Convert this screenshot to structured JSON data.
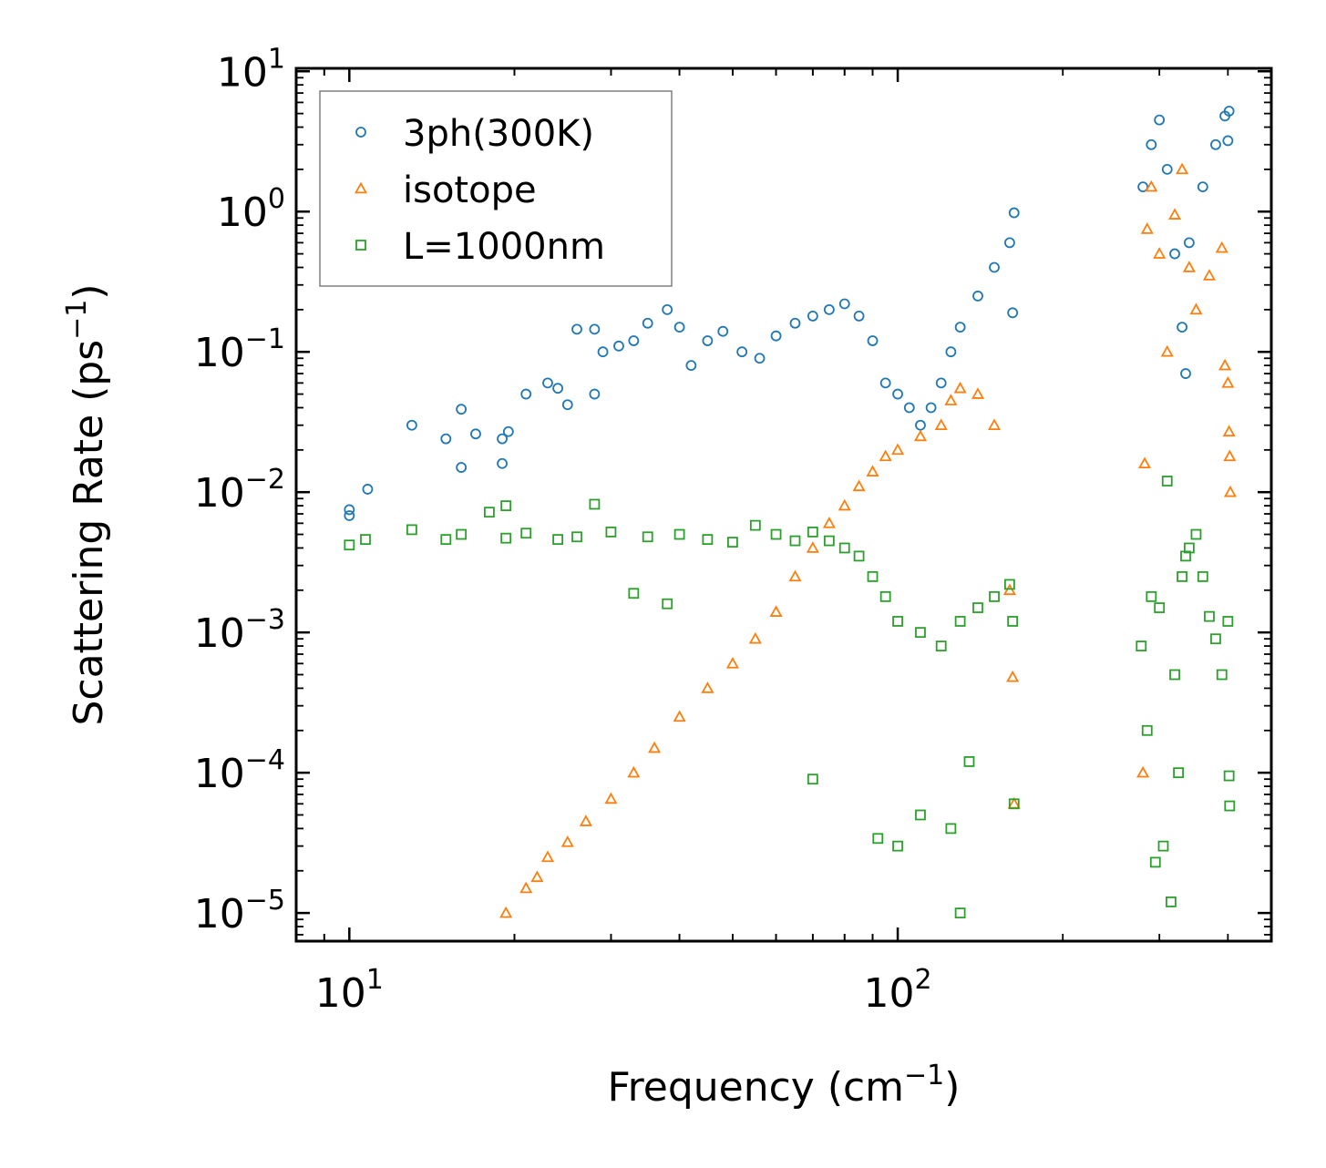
{
  "chart_data": {
    "type": "scatter",
    "x_scale": "log",
    "y_scale": "log",
    "xlabel": "Frequency (cm",
    "xlabel_sup": "−1",
    "xlabel_end": ")",
    "ylabel": "Scattering Rate (ps",
    "ylabel_sup": "−1",
    "ylabel_end": ")",
    "xlim": [
      8,
      480
    ],
    "ylim": [
      6.3e-06,
      10.5
    ],
    "x_ticks": [
      {
        "value": 10,
        "base": "10",
        "exp": "1"
      },
      {
        "value": 100,
        "base": "10",
        "exp": "2"
      }
    ],
    "y_ticks": [
      {
        "value": 10,
        "base": "10",
        "exp": "1"
      },
      {
        "value": 1,
        "base": "10",
        "exp": "0"
      },
      {
        "value": 0.1,
        "base": "10",
        "exp": "−1"
      },
      {
        "value": 0.01,
        "base": "10",
        "exp": "−2"
      },
      {
        "value": 0.001,
        "base": "10",
        "exp": "−3"
      },
      {
        "value": 0.0001,
        "base": "10",
        "exp": "−4"
      },
      {
        "value": 1e-05,
        "base": "10",
        "exp": "−5"
      }
    ],
    "legend_position": "top-left",
    "series": [
      {
        "name": "3ph(300K)",
        "marker": "circle",
        "color": "#1f77b4",
        "points": [
          [
            10,
            0.0075
          ],
          [
            10,
            0.0068
          ],
          [
            10.8,
            0.0105
          ],
          [
            13,
            0.03
          ],
          [
            15,
            0.024
          ],
          [
            16,
            0.039
          ],
          [
            16,
            0.015
          ],
          [
            17,
            0.026
          ],
          [
            19,
            0.024
          ],
          [
            19,
            0.016
          ],
          [
            19.5,
            0.027
          ],
          [
            21,
            0.05
          ],
          [
            23,
            0.06
          ],
          [
            24,
            0.055
          ],
          [
            25,
            0.042
          ],
          [
            26,
            0.145
          ],
          [
            28,
            0.145
          ],
          [
            28,
            0.05
          ],
          [
            29,
            0.1
          ],
          [
            31,
            0.11
          ],
          [
            33,
            0.12
          ],
          [
            35,
            0.16
          ],
          [
            38,
            0.2
          ],
          [
            40,
            0.15
          ],
          [
            42,
            0.08
          ],
          [
            45,
            0.12
          ],
          [
            48,
            0.14
          ],
          [
            52,
            0.1
          ],
          [
            56,
            0.09
          ],
          [
            60,
            0.13
          ],
          [
            65,
            0.16
          ],
          [
            70,
            0.18
          ],
          [
            75,
            0.2
          ],
          [
            80,
            0.22
          ],
          [
            85,
            0.18
          ],
          [
            90,
            0.12
          ],
          [
            95,
            0.06
          ],
          [
            100,
            0.05
          ],
          [
            105,
            0.04
          ],
          [
            110,
            0.03
          ],
          [
            115,
            0.04
          ],
          [
            120,
            0.06
          ],
          [
            125,
            0.1
          ],
          [
            130,
            0.15
          ],
          [
            140,
            0.25
          ],
          [
            150,
            0.4
          ],
          [
            160,
            0.6
          ],
          [
            163,
            0.98
          ],
          [
            162,
            0.19
          ],
          [
            280,
            1.5
          ],
          [
            290,
            3.0
          ],
          [
            300,
            4.5
          ],
          [
            310,
            2.0
          ],
          [
            320,
            0.5
          ],
          [
            330,
            0.15
          ],
          [
            335,
            0.07
          ],
          [
            340,
            0.6
          ],
          [
            360,
            1.5
          ],
          [
            380,
            3.0
          ],
          [
            395,
            4.8
          ],
          [
            400,
            3.2
          ],
          [
            402,
            5.2
          ]
        ]
      },
      {
        "name": "isotope",
        "marker": "triangle",
        "color": "#ff7f0e",
        "points": [
          [
            19.3,
            1e-05
          ],
          [
            21,
            1.5e-05
          ],
          [
            22,
            1.8e-05
          ],
          [
            23,
            2.5e-05
          ],
          [
            25,
            3.2e-05
          ],
          [
            27,
            4.5e-05
          ],
          [
            30,
            6.5e-05
          ],
          [
            33,
            0.0001
          ],
          [
            36,
            0.00015
          ],
          [
            40,
            0.00025
          ],
          [
            45,
            0.0004
          ],
          [
            50,
            0.0006
          ],
          [
            55,
            0.0009
          ],
          [
            60,
            0.0014
          ],
          [
            65,
            0.0025
          ],
          [
            70,
            0.004
          ],
          [
            75,
            0.006
          ],
          [
            80,
            0.008
          ],
          [
            85,
            0.011
          ],
          [
            90,
            0.014
          ],
          [
            95,
            0.018
          ],
          [
            100,
            0.02
          ],
          [
            110,
            0.025
          ],
          [
            120,
            0.03
          ],
          [
            125,
            0.045
          ],
          [
            130,
            0.055
          ],
          [
            140,
            0.05
          ],
          [
            150,
            0.03
          ],
          [
            160,
            0.002
          ],
          [
            162,
            0.00048
          ],
          [
            163,
            6e-05
          ],
          [
            280,
            0.0001
          ],
          [
            282,
            0.016
          ],
          [
            285,
            0.75
          ],
          [
            290,
            1.5
          ],
          [
            300,
            0.5
          ],
          [
            310,
            0.1
          ],
          [
            320,
            0.95
          ],
          [
            330,
            2.0
          ],
          [
            340,
            0.4
          ],
          [
            350,
            0.2
          ],
          [
            370,
            0.35
          ],
          [
            390,
            0.55
          ],
          [
            395,
            0.08
          ],
          [
            400,
            0.06
          ],
          [
            402,
            0.027
          ],
          [
            403,
            0.018
          ],
          [
            404,
            0.01
          ]
        ]
      },
      {
        "name": "L=1000nm",
        "marker": "square",
        "color": "#2ca02c",
        "points": [
          [
            10,
            0.0042
          ],
          [
            10.7,
            0.0046
          ],
          [
            13,
            0.0054
          ],
          [
            15,
            0.0046
          ],
          [
            16,
            0.005
          ],
          [
            18,
            0.0072
          ],
          [
            19.3,
            0.008
          ],
          [
            19.3,
            0.0047
          ],
          [
            21,
            0.0051
          ],
          [
            24,
            0.0046
          ],
          [
            26,
            0.0048
          ],
          [
            28,
            0.0082
          ],
          [
            30,
            0.0052
          ],
          [
            33,
            0.0019
          ],
          [
            35,
            0.0048
          ],
          [
            38,
            0.0016
          ],
          [
            40,
            0.005
          ],
          [
            45,
            0.0046
          ],
          [
            50,
            0.0044
          ],
          [
            55,
            0.0058
          ],
          [
            60,
            0.005
          ],
          [
            65,
            0.0045
          ],
          [
            70,
            0.0052
          ],
          [
            75,
            0.0045
          ],
          [
            80,
            0.004
          ],
          [
            85,
            0.0035
          ],
          [
            90,
            0.0025
          ],
          [
            95,
            0.0018
          ],
          [
            100,
            0.0012
          ],
          [
            110,
            0.001
          ],
          [
            120,
            0.0008
          ],
          [
            130,
            0.0012
          ],
          [
            140,
            0.0015
          ],
          [
            150,
            0.0018
          ],
          [
            160,
            0.0022
          ],
          [
            162,
            0.0012
          ],
          [
            70,
            9e-05
          ],
          [
            92,
            3.4e-05
          ],
          [
            100,
            3e-05
          ],
          [
            110,
            5e-05
          ],
          [
            125,
            4e-05
          ],
          [
            130,
            1e-05
          ],
          [
            135,
            0.00012
          ],
          [
            163,
            6e-05
          ],
          [
            278,
            0.0008
          ],
          [
            285,
            0.0002
          ],
          [
            290,
            0.0018
          ],
          [
            295,
            2.3e-05
          ],
          [
            300,
            0.0015
          ],
          [
            305,
            3e-05
          ],
          [
            310,
            0.012
          ],
          [
            315,
            1.2e-05
          ],
          [
            320,
            0.0005
          ],
          [
            325,
            0.0001
          ],
          [
            330,
            0.0025
          ],
          [
            335,
            0.0035
          ],
          [
            340,
            0.004
          ],
          [
            350,
            0.005
          ],
          [
            360,
            0.0025
          ],
          [
            370,
            0.0013
          ],
          [
            380,
            0.0009
          ],
          [
            390,
            0.0005
          ],
          [
            400,
            0.0012
          ],
          [
            402,
            9.5e-05
          ],
          [
            403,
            5.8e-05
          ]
        ]
      }
    ]
  }
}
